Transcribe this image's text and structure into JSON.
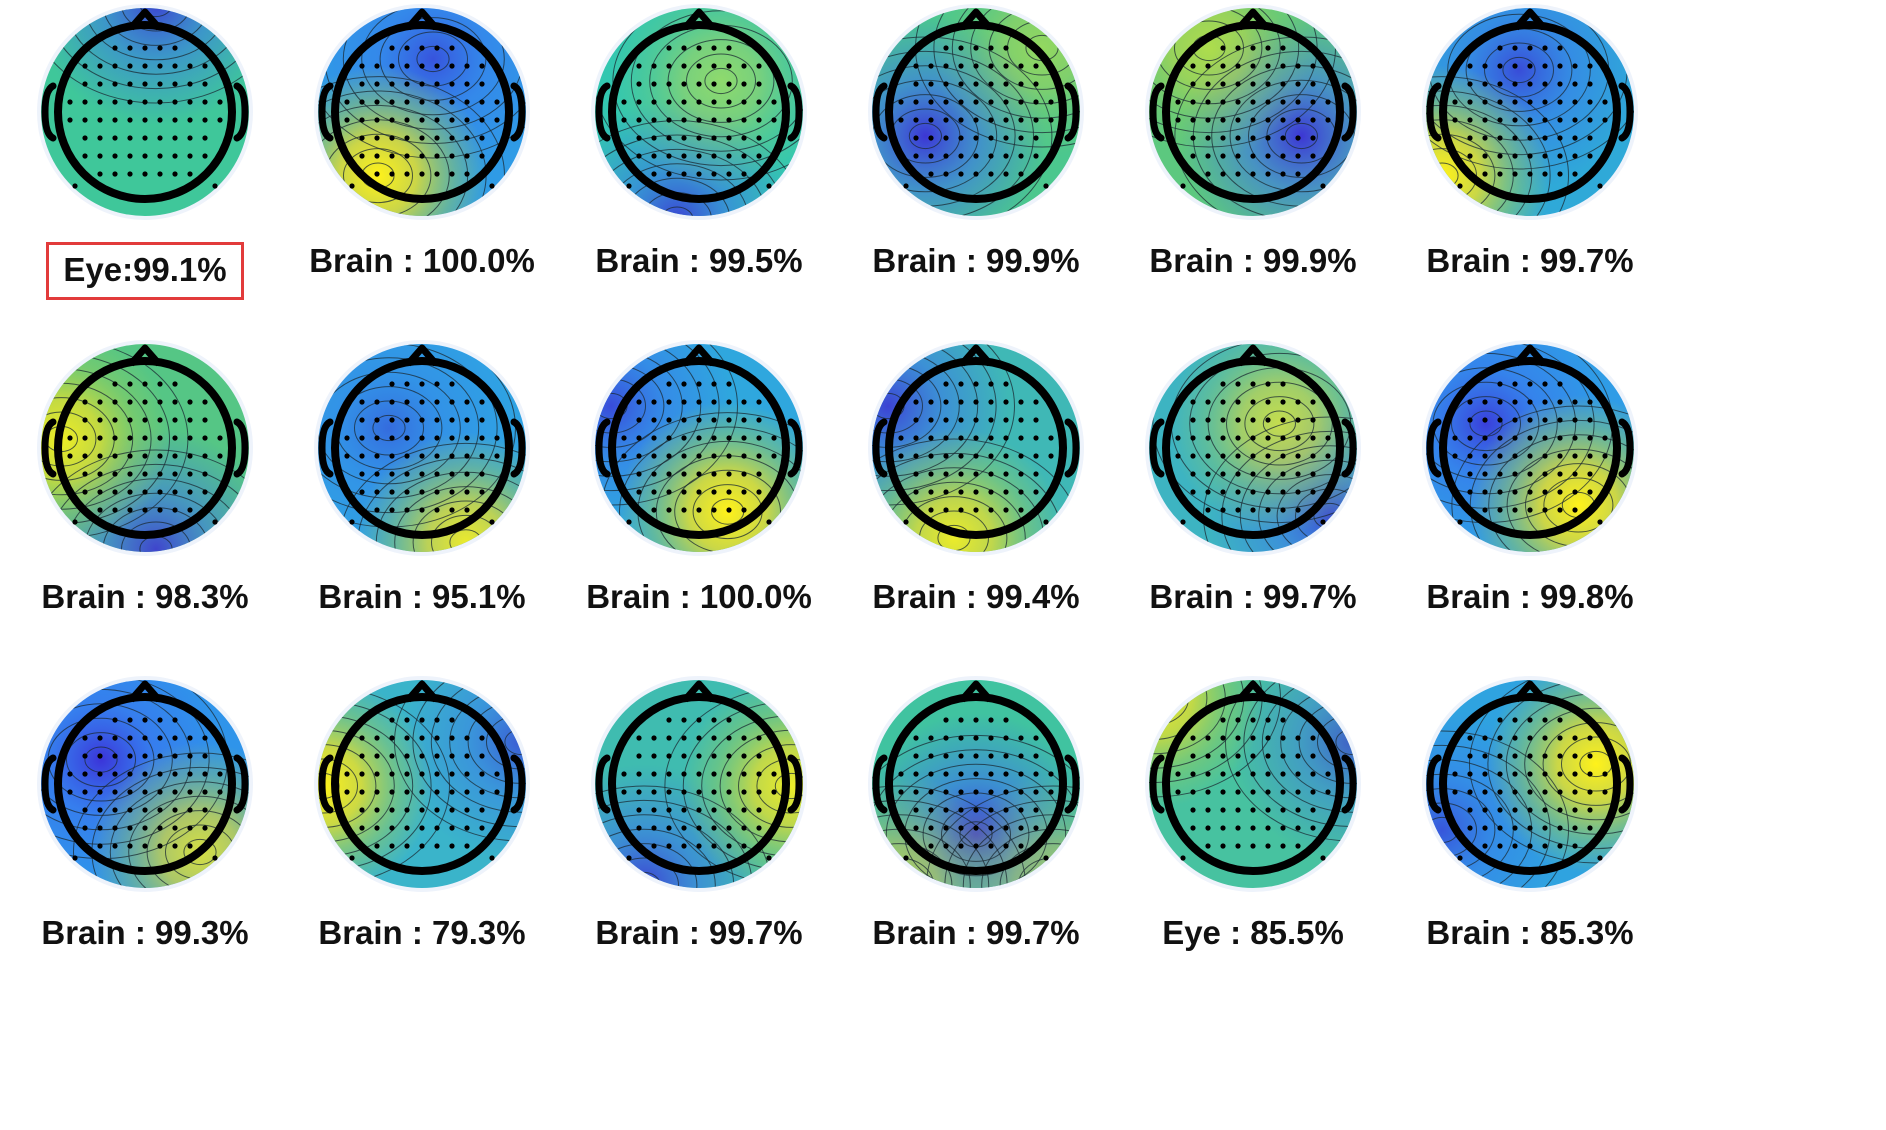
{
  "grid": {
    "rows": 3,
    "cols": 6
  },
  "components": [
    {
      "label": "Eye",
      "prob": "99.1%",
      "highlight": true,
      "hot": [],
      "cold": [
        [
          0.55,
          0.0,
          0.9
        ]
      ],
      "base": "#3fc79a"
    },
    {
      "label": "Brain",
      "prob": "100.0%",
      "highlight": false,
      "hot": [
        [
          0.3,
          0.78,
          1.0
        ]
      ],
      "cold": [
        [
          0.55,
          0.25,
          0.7
        ]
      ],
      "base": "#2f9be6"
    },
    {
      "label": "Brain",
      "prob": "99.5%",
      "highlight": false,
      "hot": [
        [
          0.6,
          0.35,
          0.45
        ]
      ],
      "cold": [
        [
          0.4,
          0.98,
          0.9
        ]
      ],
      "base": "#33c7b0"
    },
    {
      "label": "Brain",
      "prob": "99.9%",
      "highlight": false,
      "hot": [
        [
          0.8,
          0.2,
          0.4
        ]
      ],
      "cold": [
        [
          0.27,
          0.6,
          1.0
        ]
      ],
      "base": "#4bc78e"
    },
    {
      "label": "Brain",
      "prob": "99.9%",
      "highlight": false,
      "hot": [
        [
          0.3,
          0.2,
          0.5
        ]
      ],
      "cold": [
        [
          0.72,
          0.6,
          1.0
        ]
      ],
      "base": "#5cc87f"
    },
    {
      "label": "Brain",
      "prob": "99.7%",
      "highlight": false,
      "hot": [
        [
          0.1,
          0.78,
          1.0
        ]
      ],
      "cold": [
        [
          0.45,
          0.3,
          0.8
        ]
      ],
      "base": "#2fa9d8"
    },
    {
      "label": "Brain",
      "prob": "98.3%",
      "highlight": false,
      "hot": [
        [
          0.12,
          0.45,
          0.9
        ]
      ],
      "cold": [
        [
          0.55,
          0.95,
          0.9
        ]
      ],
      "base": "#55c685"
    },
    {
      "label": "Brain",
      "prob": "95.1%",
      "highlight": false,
      "hot": [
        [
          0.7,
          0.92,
          0.9
        ]
      ],
      "cold": [
        [
          0.35,
          0.4,
          0.5
        ]
      ],
      "base": "#2fa2e3"
    },
    {
      "label": "Brain",
      "prob": "100.0%",
      "highlight": false,
      "hot": [
        [
          0.63,
          0.78,
          1.0
        ]
      ],
      "cold": [
        [
          0.1,
          0.3,
          0.8
        ]
      ],
      "base": "#2fa7de"
    },
    {
      "label": "Brain",
      "prob": "99.4%",
      "highlight": false,
      "hot": [
        [
          0.4,
          0.9,
          0.9
        ]
      ],
      "cold": [
        [
          0.1,
          0.3,
          0.9
        ]
      ],
      "base": "#3fb8b6"
    },
    {
      "label": "Brain",
      "prob": "99.7%",
      "highlight": false,
      "hot": [
        [
          0.62,
          0.38,
          0.7
        ]
      ],
      "cold": [
        [
          0.85,
          0.8,
          0.8
        ]
      ],
      "base": "#3db4c2"
    },
    {
      "label": "Brain",
      "prob": "99.8%",
      "highlight": false,
      "hot": [
        [
          0.72,
          0.75,
          1.0
        ]
      ],
      "cold": [
        [
          0.3,
          0.38,
          0.9
        ]
      ],
      "base": "#2f9ce6"
    },
    {
      "label": "Brain",
      "prob": "99.3%",
      "highlight": false,
      "hot": [
        [
          0.75,
          0.8,
          0.8
        ]
      ],
      "cold": [
        [
          0.3,
          0.38,
          1.0
        ]
      ],
      "base": "#2f94ea"
    },
    {
      "label": "Brain",
      "prob": "79.3%",
      "highlight": false,
      "hot": [
        [
          0.05,
          0.5,
          1.0
        ]
      ],
      "cold": [
        [
          0.95,
          0.3,
          0.7
        ]
      ],
      "base": "#3ab4ca"
    },
    {
      "label": "Brain",
      "prob": "99.7%",
      "highlight": false,
      "hot": [
        [
          0.92,
          0.5,
          0.9
        ]
      ],
      "cold": [
        [
          0.25,
          0.95,
          0.9
        ]
      ],
      "base": "#3fbcb0"
    },
    {
      "label": "Brain",
      "prob": "99.7%",
      "highlight": false,
      "hot": [
        [
          0.15,
          0.95,
          0.6
        ],
        [
          0.85,
          0.95,
          0.5
        ]
      ],
      "cold": [
        [
          0.5,
          0.72,
          1.0
        ]
      ],
      "base": "#40c3a0"
    },
    {
      "label": "Eye",
      "prob": "85.5%",
      "highlight": false,
      "hot": [
        [
          0.05,
          0.1,
          0.9
        ]
      ],
      "cold": [
        [
          0.95,
          0.3,
          0.7
        ]
      ],
      "base": "#47c2a0"
    },
    {
      "label": "Brain",
      "prob": "85.3%",
      "highlight": false,
      "hot": [
        [
          0.8,
          0.4,
          1.0
        ]
      ],
      "cold": [
        [
          0.1,
          0.7,
          0.7
        ]
      ],
      "base": "#2fa3e0"
    }
  ]
}
